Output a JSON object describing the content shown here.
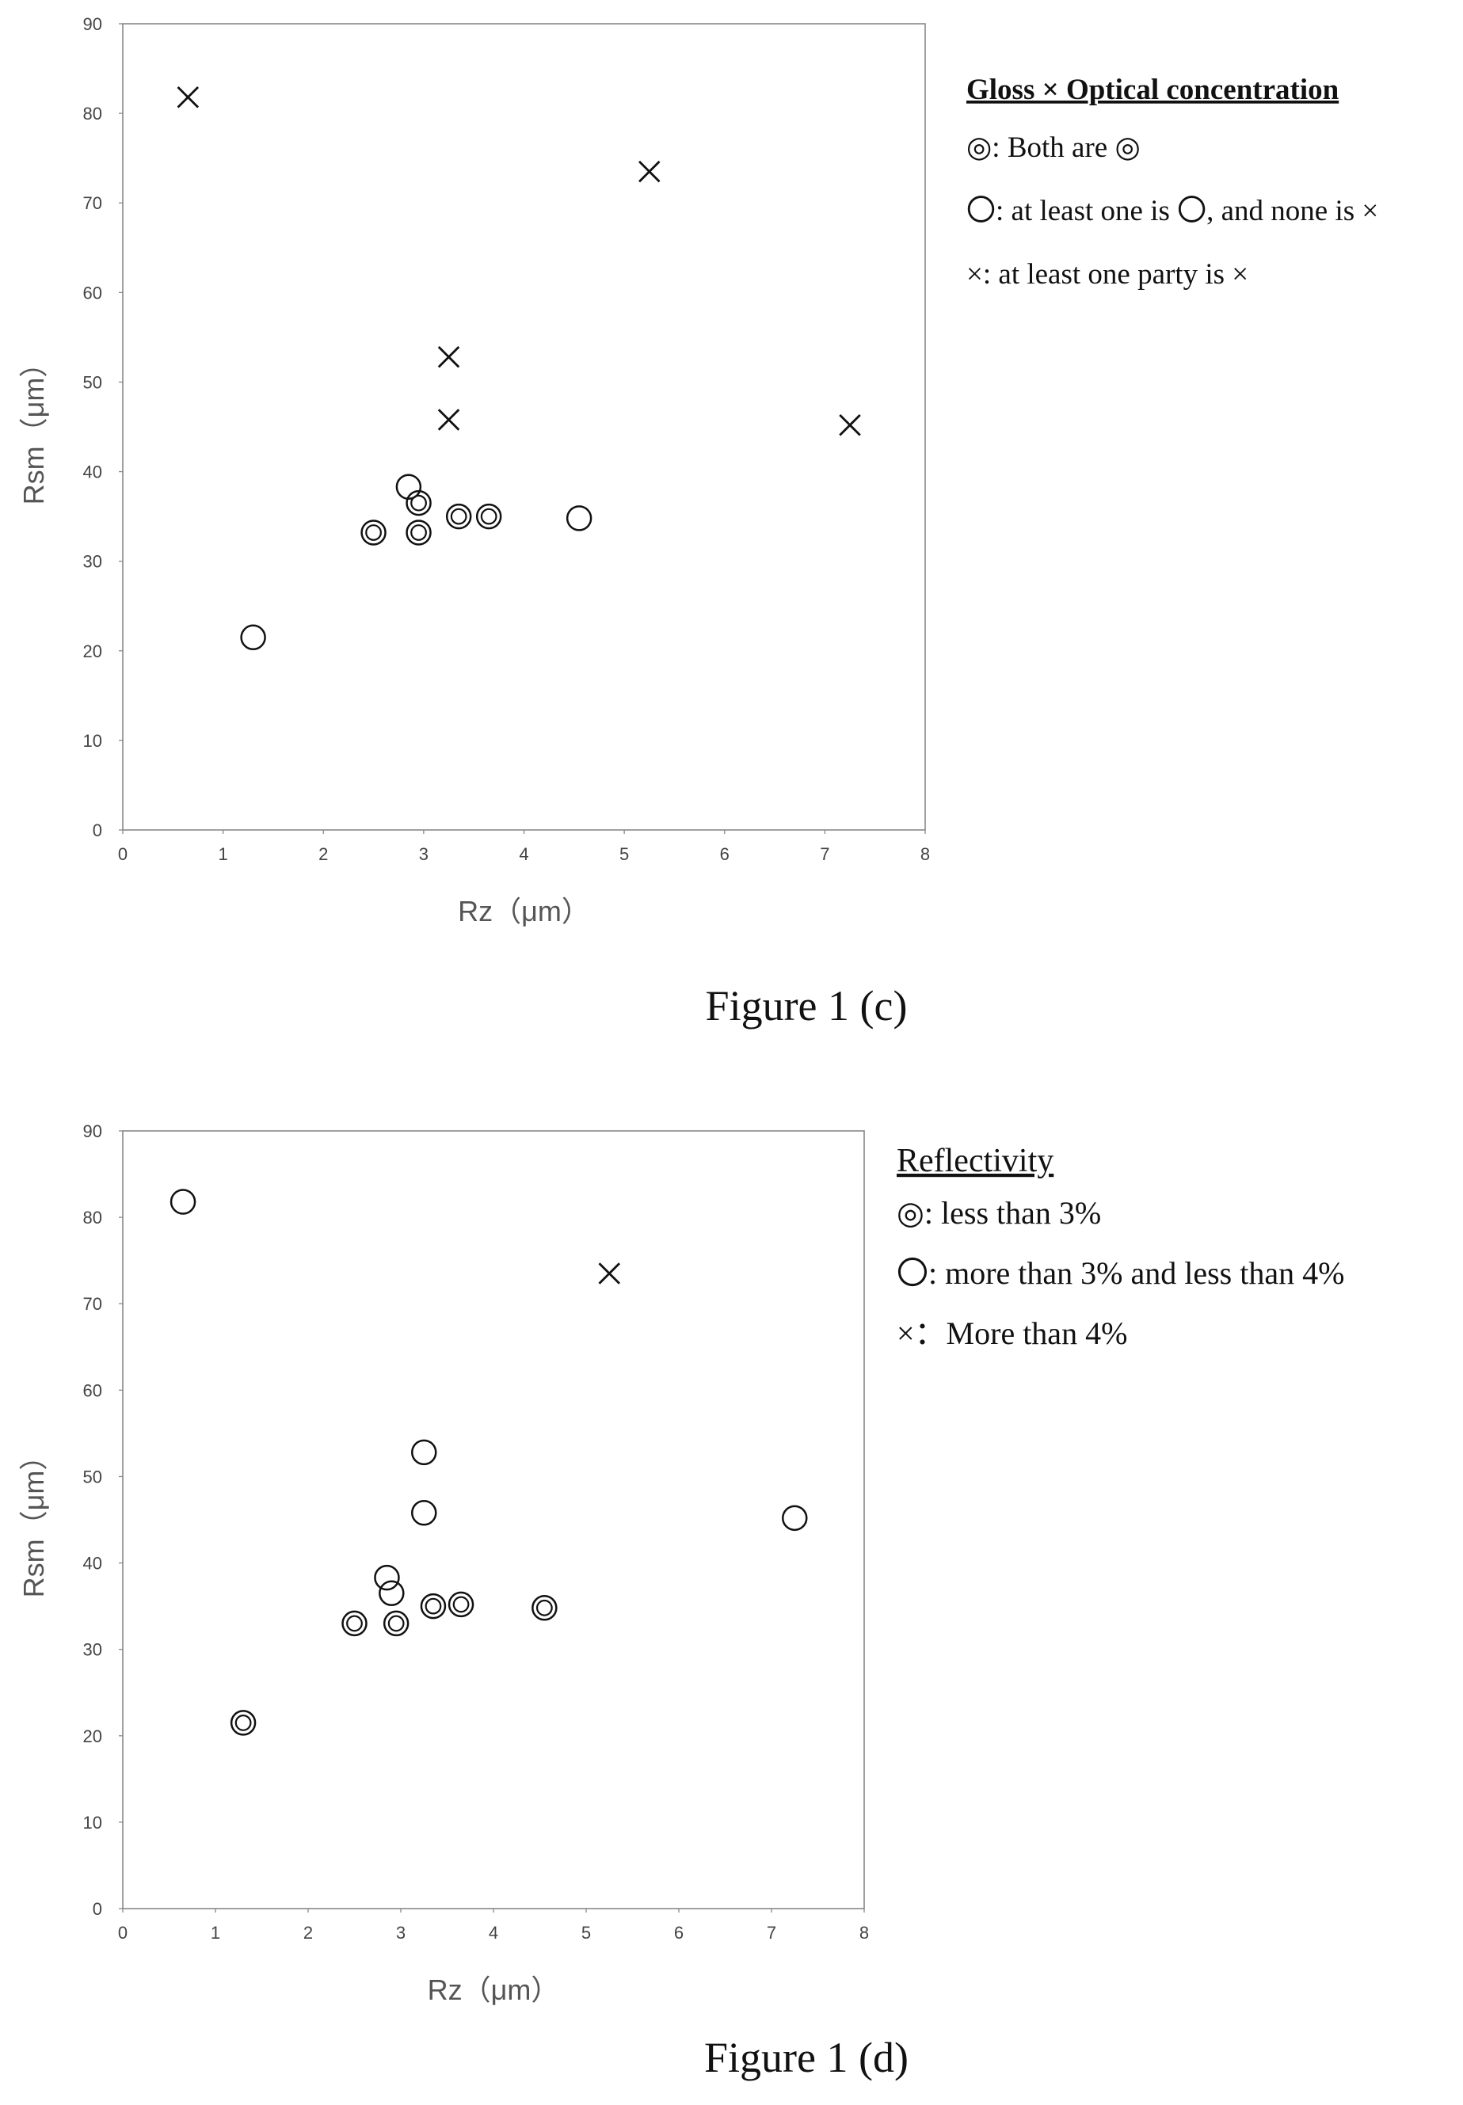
{
  "chart_data": [
    {
      "type": "scatter",
      "caption": "Figure 1 (c)",
      "xlabel": "Rz（μm）",
      "ylabel": "Rsm（μm）",
      "xlim": [
        0,
        8
      ],
      "ylim": [
        0,
        90
      ],
      "x_ticks": [
        "0",
        "1",
        "2",
        "3",
        "4",
        "5",
        "6",
        "7",
        "8"
      ],
      "y_ticks": [
        "0",
        "10",
        "20",
        "30",
        "40",
        "50",
        "60",
        "70",
        "80",
        "90"
      ],
      "legend": {
        "title": "Gloss × Optical concentration",
        "entries": [
          {
            "marker": "double-circle",
            "label": "◎: Both are ◎"
          },
          {
            "marker": "circle",
            "label": "〇: at least one is 〇, and none is ×"
          },
          {
            "marker": "cross",
            "label": "×: at least one party is ×"
          }
        ]
      },
      "series": [
        {
          "marker": "double-circle",
          "points": [
            [
              2.5,
              33.2
            ],
            [
              2.95,
              36.5
            ],
            [
              2.95,
              33.2
            ],
            [
              3.35,
              35.0
            ],
            [
              3.65,
              35.0
            ]
          ]
        },
        {
          "marker": "circle",
          "points": [
            [
              1.3,
              21.5
            ],
            [
              2.85,
              38.3
            ],
            [
              4.55,
              34.8
            ]
          ]
        },
        {
          "marker": "cross",
          "points": [
            [
              0.65,
              81.8
            ],
            [
              5.25,
              73.5
            ],
            [
              3.25,
              52.8
            ],
            [
              3.25,
              45.8
            ],
            [
              7.25,
              45.2
            ]
          ]
        }
      ]
    },
    {
      "type": "scatter",
      "caption": "Figure 1 (d)",
      "xlabel": "Rz（μm）",
      "ylabel": "Rsm（μm）",
      "xlim": [
        0,
        8
      ],
      "ylim": [
        0,
        90
      ],
      "x_ticks": [
        "0",
        "1",
        "2",
        "3",
        "4",
        "5",
        "6",
        "7",
        "8"
      ],
      "y_ticks": [
        "0",
        "10",
        "20",
        "30",
        "40",
        "50",
        "60",
        "70",
        "80",
        "90"
      ],
      "legend": {
        "title": "Reflectivity",
        "entries": [
          {
            "marker": "double-circle",
            "label": "◎: less than 3%"
          },
          {
            "marker": "circle",
            "label": "〇: more than 3% and less than 4%"
          },
          {
            "marker": "cross",
            "label": "×：More than 4%"
          }
        ]
      },
      "series": [
        {
          "marker": "double-circle",
          "points": [
            [
              1.3,
              21.5
            ],
            [
              2.5,
              33.0
            ],
            [
              2.95,
              33.0
            ],
            [
              3.35,
              35.0
            ],
            [
              3.65,
              35.2
            ],
            [
              4.55,
              34.8
            ]
          ]
        },
        {
          "marker": "circle",
          "points": [
            [
              0.65,
              81.8
            ],
            [
              2.85,
              38.3
            ],
            [
              2.9,
              36.5
            ],
            [
              3.25,
              52.8
            ],
            [
              3.25,
              45.8
            ],
            [
              7.25,
              45.2
            ]
          ]
        },
        {
          "marker": "cross",
          "points": [
            [
              5.25,
              73.5
            ]
          ]
        }
      ]
    }
  ]
}
